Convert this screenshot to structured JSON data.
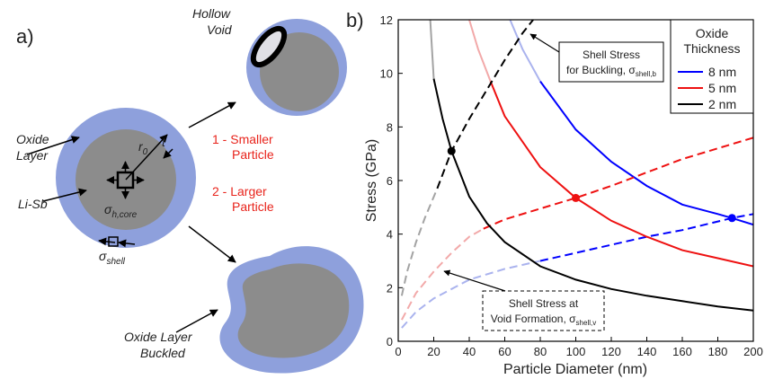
{
  "diagram": {
    "panel_label": "a)",
    "hollow_void": [
      "Hollow",
      "Void"
    ],
    "oxide_layer": [
      "Oxide",
      "Layer"
    ],
    "core_label": "Li-Sb",
    "radius": {
      "symbol": "r",
      "subscript": "0"
    },
    "thickness": "t",
    "core_stress": {
      "symbol": "σ",
      "subscript": "h,core"
    },
    "shell_stress": {
      "symbol": "σ",
      "subscript": "shell"
    },
    "smaller": [
      "1 - Smaller",
      "Particle"
    ],
    "larger": [
      "2 - Larger",
      "Particle"
    ],
    "buckled": [
      "Oxide Layer",
      "Buckled"
    ]
  },
  "chart_data": {
    "type": "line",
    "panel_label": "b)",
    "xlabel": "Particle Diameter (nm)",
    "ylabel": "Stress (GPa)",
    "xlim": [
      0,
      200
    ],
    "ylim": [
      0,
      12
    ],
    "xticks": [
      0,
      20,
      40,
      60,
      80,
      100,
      120,
      140,
      160,
      180,
      200
    ],
    "yticks": [
      0,
      2,
      4,
      6,
      8,
      10,
      12
    ],
    "legend_title": [
      "Oxide",
      "Thickness"
    ],
    "legend_position": "upper right",
    "series": [
      {
        "name": "8 nm",
        "color": "#0000ff",
        "faded_color": "#aab3ee",
        "buckling_faded": {
          "x": [
            63,
            70,
            80
          ],
          "values": [
            12,
            10.9,
            9.7
          ]
        },
        "buckling": {
          "x": [
            80,
            100,
            120,
            140,
            160,
            180,
            188,
            200
          ],
          "values": [
            9.7,
            7.9,
            6.7,
            5.8,
            5.1,
            4.75,
            4.6,
            4.35
          ]
        },
        "void_faded": {
          "x": [
            2,
            10,
            20,
            40,
            60,
            80
          ],
          "values": [
            0.5,
            1.1,
            1.6,
            2.3,
            2.7,
            3.0
          ]
        },
        "void": {
          "x": [
            80,
            100,
            120,
            140,
            160,
            188,
            200
          ],
          "values": [
            3.0,
            3.3,
            3.6,
            3.9,
            4.15,
            4.6,
            4.75
          ]
        },
        "intersection": {
          "x": 188,
          "value": 4.6
        }
      },
      {
        "name": "5 nm",
        "color": "#ee1111",
        "faded_color": "#f2a9a9",
        "buckling_faded": {
          "x": [
            40,
            45,
            52
          ],
          "values": [
            12,
            10.9,
            9.7
          ]
        },
        "buckling": {
          "x": [
            52,
            60,
            80,
            100,
            120,
            140,
            160,
            180,
            200
          ],
          "values": [
            9.7,
            8.4,
            6.5,
            5.35,
            4.5,
            3.9,
            3.4,
            3.1,
            2.8
          ]
        },
        "void_faded": {
          "x": [
            2,
            10,
            20,
            30,
            40,
            48
          ],
          "values": [
            0.8,
            1.8,
            2.6,
            3.3,
            3.9,
            4.2
          ]
        },
        "void": {
          "x": [
            48,
            60,
            80,
            100,
            120,
            140,
            160,
            180,
            200
          ],
          "values": [
            4.2,
            4.55,
            4.95,
            5.35,
            5.8,
            6.3,
            6.8,
            7.2,
            7.6
          ]
        },
        "intersection": {
          "x": 100,
          "value": 5.35
        }
      },
      {
        "name": "2 nm",
        "color": "#000000",
        "faded_color": "#a3a3a3",
        "buckling_faded": {
          "x": [
            18,
            20
          ],
          "values": [
            12,
            9.8
          ]
        },
        "buckling": {
          "x": [
            20,
            25,
            30,
            40,
            50,
            60,
            80,
            100,
            120,
            140,
            160,
            180,
            200
          ],
          "values": [
            9.8,
            8.3,
            7.1,
            5.4,
            4.4,
            3.7,
            2.8,
            2.3,
            1.95,
            1.7,
            1.5,
            1.3,
            1.15
          ]
        },
        "void_faded": {
          "x": [
            2,
            5,
            10,
            15,
            22
          ],
          "values": [
            1.7,
            2.6,
            3.7,
            4.6,
            5.7
          ]
        },
        "void": {
          "x": [
            22,
            30,
            40,
            50,
            60,
            70,
            76
          ],
          "values": [
            5.7,
            7.1,
            8.3,
            9.4,
            10.5,
            11.5,
            12
          ]
        },
        "intersection": {
          "x": 30,
          "value": 7.1
        }
      }
    ],
    "annotations": [
      {
        "lines": [
          "Shell Stress",
          "for Buckling, σ"
        ],
        "subscript": "shell,b"
      },
      {
        "lines": [
          "Shell Stress at",
          "Void Formation, σ"
        ],
        "subscript": "shell,v"
      }
    ]
  }
}
